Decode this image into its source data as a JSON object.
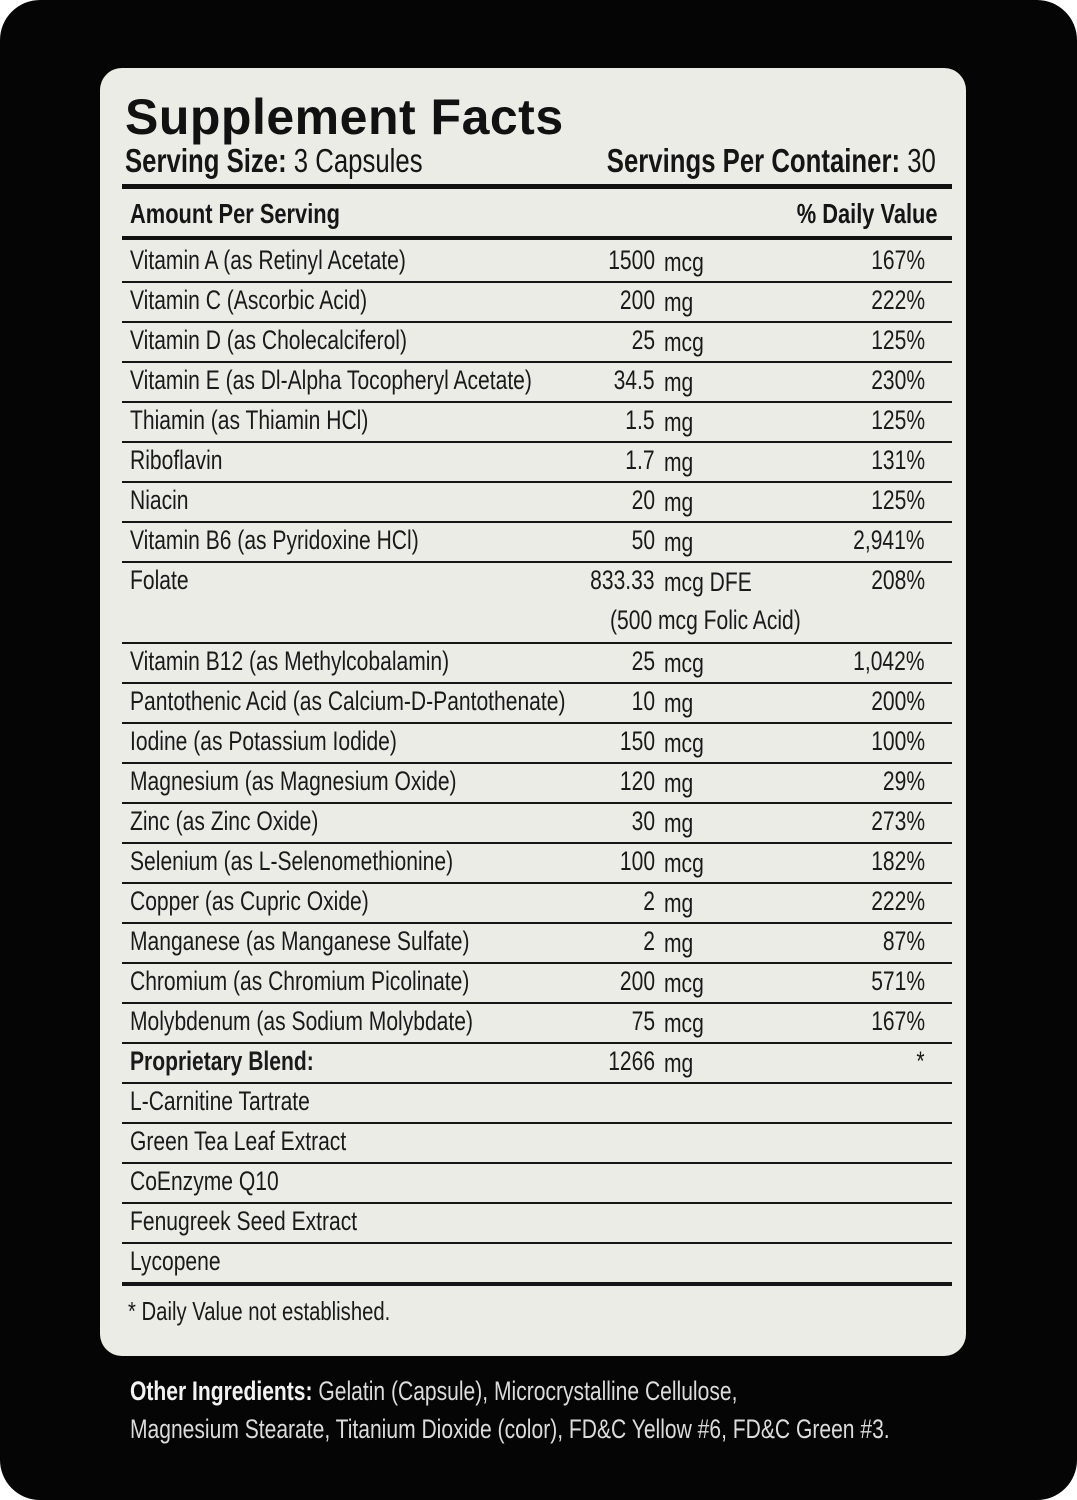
{
  "title": "Supplement Facts",
  "serving_size_label": "Serving Size:",
  "serving_size_value": "3 Capsules",
  "servings_label": "Servings Per Container:",
  "servings_value": "30",
  "header": {
    "amount": "Amount Per Serving",
    "dv": "% Daily Value"
  },
  "rows": [
    {
      "name": "Vitamin A (as Retinyl Acetate)",
      "amount": "1500",
      "unit": "mcg",
      "dv": "167%"
    },
    {
      "name": "Vitamin C (Ascorbic Acid)",
      "amount": "200",
      "unit": "mg",
      "dv": "222%"
    },
    {
      "name": "Vitamin D (as Cholecalciferol)",
      "amount": "25",
      "unit": "mcg",
      "dv": "125%"
    },
    {
      "name": "Vitamin E (as Dl-Alpha Tocopheryl Acetate)",
      "amount": "34.5",
      "unit": "mg",
      "dv": "230%"
    },
    {
      "name": "Thiamin (as Thiamin HCl)",
      "amount": "1.5",
      "unit": "mg",
      "dv": "125%"
    },
    {
      "name": "Riboflavin",
      "amount": "1.7",
      "unit": "mg",
      "dv": "131%"
    },
    {
      "name": "Niacin",
      "amount": "20",
      "unit": "mg",
      "dv": "125%"
    },
    {
      "name": "Vitamin B6 (as Pyridoxine HCl)",
      "amount": "50",
      "unit": "mg",
      "dv": "2,941%"
    },
    {
      "name": "Folate",
      "amount": "833.33",
      "unit": "mcg DFE",
      "extra": "(500 mcg Folic Acid)",
      "dv": "208%"
    },
    {
      "name": "Vitamin B12 (as Methylcobalamin)",
      "amount": "25",
      "unit": "mcg",
      "dv": "1,042%"
    },
    {
      "name": "Pantothenic Acid (as Calcium-D-Pantothenate)",
      "amount": "10",
      "unit": "mg",
      "dv": "200%"
    },
    {
      "name": "Iodine (as Potassium Iodide)",
      "amount": "150",
      "unit": "mcg",
      "dv": "100%"
    },
    {
      "name": "Magnesium (as Magnesium Oxide)",
      "amount": "120",
      "unit": "mg",
      "dv": "29%"
    },
    {
      "name": "Zinc (as Zinc Oxide)",
      "amount": "30",
      "unit": "mg",
      "dv": "273%"
    },
    {
      "name": "Selenium (as L-Selenomethionine)",
      "amount": "100",
      "unit": "mcg",
      "dv": "182%"
    },
    {
      "name": "Copper (as Cupric Oxide)",
      "amount": "2",
      "unit": "mg",
      "dv": "222%"
    },
    {
      "name": "Manganese (as Manganese Sulfate)",
      "amount": "2",
      "unit": "mg",
      "dv": "87%"
    },
    {
      "name": "Chromium (as Chromium Picolinate)",
      "amount": "200",
      "unit": "mcg",
      "dv": "571%"
    },
    {
      "name": "Molybdenum (as Sodium Molybdate)",
      "amount": "75",
      "unit": "mcg",
      "dv": "167%"
    },
    {
      "name": "Proprietary Blend:",
      "amount": "1266",
      "unit": "mg",
      "dv": "*",
      "bold": true
    },
    {
      "name": "L-Carnitine Tartrate"
    },
    {
      "name": "Green Tea Leaf Extract"
    },
    {
      "name": "CoEnzyme Q10"
    },
    {
      "name": "Fenugreek Seed Extract"
    },
    {
      "name": "Lycopene"
    }
  ],
  "footnote": "* Daily Value not established.",
  "other_ingredients_label": "Other Ingredients:",
  "other_ingredients_line1": "Gelatin (Capsule), Microcrystalline Cellulose,",
  "other_ingredients_line2": "Magnesium Stearate, Titanium Dioxide (color), FD&C Yellow #6, FD&C Green #3."
}
